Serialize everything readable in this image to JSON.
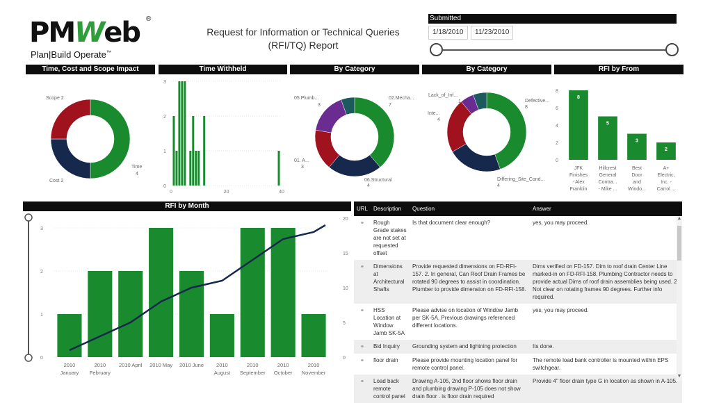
{
  "logo": {
    "brand_pm": "PM",
    "brand_w": "W",
    "brand_eb": "eb",
    "registered": "®",
    "tagline": "Plan|Build Operate",
    "tm": "™"
  },
  "report_title_line1": "Request for Information or Technical Queries",
  "report_title_line2": "(RFI/TQ) Report",
  "filter": {
    "label": "Submitted",
    "start_date": "1/18/2010",
    "end_date": "11/23/2010"
  },
  "panels": {
    "impact": "Time, Cost and Scope Impact",
    "withheld": "Time Withheld",
    "category1": "By Category",
    "category2": "By Category",
    "from": "RFI by From",
    "month": "RFI by Month"
  },
  "colors": {
    "green": "#1a8a2e",
    "navy": "#17284d",
    "red": "#a0131e",
    "purple": "#6a2c91",
    "teal": "#1d5a5e",
    "dark": "#0d0d0d"
  },
  "chart_data": [
    {
      "type": "pie",
      "title": "Time, Cost and Scope Impact",
      "slices": [
        {
          "label": "Time",
          "value": 4
        },
        {
          "label": "Cost",
          "value": 2
        },
        {
          "label": "Scope",
          "value": 2
        }
      ],
      "labels_text": [
        "Time",
        "4",
        "Cost 2",
        "Scope 2"
      ]
    },
    {
      "type": "bar",
      "title": "Time Withheld",
      "xlim": [
        0,
        40
      ],
      "ylim": [
        0,
        3
      ],
      "x_ticks": [
        "0",
        "20",
        "40"
      ],
      "y_ticks": [
        "0",
        "1",
        "2",
        "3"
      ],
      "points": [
        {
          "x": 1,
          "y": 2
        },
        {
          "x": 2,
          "y": 1
        },
        {
          "x": 3,
          "y": 3
        },
        {
          "x": 4,
          "y": 3
        },
        {
          "x": 5,
          "y": 3
        },
        {
          "x": 7,
          "y": 1
        },
        {
          "x": 8,
          "y": 2
        },
        {
          "x": 9,
          "y": 1
        },
        {
          "x": 10,
          "y": 1
        },
        {
          "x": 12,
          "y": 2
        },
        {
          "x": 39,
          "y": 1
        }
      ]
    },
    {
      "type": "pie",
      "title": "By Category",
      "slices": [
        {
          "label": "02.Mecha...",
          "value": 7
        },
        {
          "label": "06.Structural",
          "value": 4
        },
        {
          "label": "01. A...",
          "value": 3
        },
        {
          "label": "05.Plumb...",
          "value": 3
        },
        {
          "label": "",
          "value": 1
        }
      ],
      "labels_text": [
        "05.Plumb...",
        "3",
        "02.Mecha...",
        "7",
        "01. A...",
        "3",
        "06.Structural",
        "4"
      ]
    },
    {
      "type": "pie",
      "title": "By Category",
      "slices": [
        {
          "label": "Defective...",
          "value": 8
        },
        {
          "label": "Differing_Site_Cond...",
          "value": 4
        },
        {
          "label": "Inte...",
          "value": 4
        },
        {
          "label": "Lack_of_Inf...",
          "value": 1
        },
        {
          "label": "",
          "value": 1
        }
      ],
      "labels_text": [
        "Lack_of_Inf...",
        "1",
        "Defective...",
        "8",
        "Inte...",
        "4",
        "Differing_Site_Cond...",
        "4"
      ]
    },
    {
      "type": "bar",
      "title": "RFI by From",
      "categories": [
        "JFK Finishes - Alex Franklin",
        "Hillcrest General Contra... - Mike ...",
        "Best Door and Windo...",
        "A+ Electric, Inc. - Carrol ..."
      ],
      "category_lines": [
        [
          "JFK",
          "Finishes",
          "- Alex",
          "Franklin"
        ],
        [
          "Hillcrest",
          "General",
          "Contra...",
          "- Mike ..."
        ],
        [
          "Best",
          "Door",
          "and",
          "Windo..."
        ],
        [
          "A+",
          "Electric,",
          "Inc. -",
          "Carrol ..."
        ]
      ],
      "values": [
        8,
        5,
        3,
        2
      ],
      "value_labels": [
        "8",
        "5",
        "3",
        "2"
      ],
      "ylim": [
        0,
        8
      ],
      "y_ticks": [
        "0",
        "2",
        "4",
        "6",
        "8"
      ]
    },
    {
      "type": "bar",
      "title": "RFI by Month",
      "categories": [
        "2010 January",
        "2010 February",
        "2010 April",
        "2010 May",
        "2010 June",
        "2010 August",
        "2010 September",
        "2010 October",
        "2010 November"
      ],
      "category_lines": [
        [
          "2010",
          "January"
        ],
        [
          "2010",
          "February"
        ],
        [
          "2010 April",
          ""
        ],
        [
          "2010 May",
          ""
        ],
        [
          "2010 June",
          ""
        ],
        [
          "2010",
          "August"
        ],
        [
          "2010",
          "September"
        ],
        [
          "2010",
          "October"
        ],
        [
          "2010",
          "November"
        ]
      ],
      "series": [
        {
          "type": "bar",
          "values": [
            1,
            2,
            2,
            3,
            2,
            1,
            3,
            3,
            1
          ]
        },
        {
          "type": "line",
          "values": [
            1,
            3,
            5,
            8,
            10,
            11,
            14,
            17,
            18
          ]
        }
      ],
      "ylim": [
        0,
        3
      ],
      "y2lim": [
        0,
        20
      ],
      "y_ticks": [
        "0",
        "1",
        "2",
        "3"
      ],
      "y2_ticks": [
        "0",
        "5",
        "10",
        "15",
        "20"
      ]
    }
  ],
  "table": {
    "headers": [
      "URL",
      "Description",
      "Question",
      "Answer"
    ],
    "rows": [
      {
        "desc": "Rough Grade stakes are not set at requested offset",
        "question": "Is that document clear enough?",
        "answer": "yes, you may proceed."
      },
      {
        "desc": "Dimensions at Architectural Shafts",
        "question": "Provide requested dimensions on FD-RFI-157. 2. In general, Can Roof Drain Frames be rotated 90 degrees to assist in coordination. Plumber to provide dimension on FD-RFI-158.",
        "answer": "Dims verified on FD-157. Dim to roof drain Center Line marked-in on FD-RFI-158. Plumbing Contractor needs to provide actual Dims of roof drain assemblies being used. 2. Not clear on rotating frames 90 degrees. Further info required."
      },
      {
        "desc": "HSS Location at Window Jamb SK-5A",
        "question": "Please advise on location of Window Jamb per SK-5A. Previous drawings referenced different locations.",
        "answer": "yes, you may proceed."
      },
      {
        "desc": "Bid Inquiry",
        "question": "Grounding system and lightning protection",
        "answer": "Its done."
      },
      {
        "desc": "floor drain",
        "question": "Please provide mounting location panel for remote control panel.",
        "answer": "The remote load bank controller is mounted within EPS switchgear."
      },
      {
        "desc": "Load back remote control panel",
        "question": "Drawing A-105, 2nd floor shows floor drain and plumbing drawing P-105 does not show drain floor . is floor drain required",
        "answer": "Provide 4\" floor drain type G in location as shown in A-105."
      }
    ]
  }
}
